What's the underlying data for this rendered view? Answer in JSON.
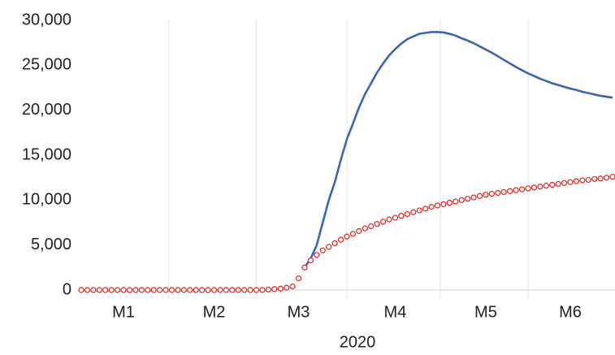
{
  "chart_data": {
    "type": "line",
    "x_label": "2020",
    "categories": [
      null,
      null,
      null,
      null,
      null,
      null,
      null,
      "M1",
      null,
      null,
      null,
      null,
      null,
      null,
      null,
      null,
      null,
      null,
      null,
      null,
      null,
      null,
      "M2",
      null,
      null,
      null,
      null,
      null,
      null,
      null,
      null,
      null,
      null,
      null,
      null,
      null,
      "M3",
      null,
      null,
      null,
      null,
      null,
      null,
      null,
      null,
      null,
      null,
      null,
      null,
      null,
      null,
      null,
      "M4",
      null,
      null,
      null,
      null,
      null,
      null,
      null,
      null,
      null,
      null,
      null,
      null,
      null,
      null,
      "M5",
      null,
      null,
      null,
      null,
      null,
      null,
      null,
      null,
      null,
      null,
      null,
      null,
      null,
      "M6",
      null,
      null,
      null,
      null,
      null,
      null,
      null
    ],
    "series": [
      {
        "color": "#3b66ad",
        "style": "line",
        "values": [
          null,
          null,
          null,
          null,
          null,
          null,
          null,
          null,
          null,
          null,
          null,
          null,
          null,
          null,
          null,
          null,
          null,
          null,
          null,
          null,
          null,
          null,
          null,
          null,
          null,
          null,
          null,
          null,
          null,
          null,
          null,
          null,
          null,
          null,
          null,
          null,
          null,
          2500,
          3500,
          5000,
          7500,
          10000,
          12000,
          14500,
          16800,
          18500,
          20300,
          21800,
          23000,
          24200,
          25200,
          26100,
          26800,
          27400,
          27900,
          28200,
          28500,
          28600,
          28700,
          28700,
          28650,
          28500,
          28300,
          28000,
          27750,
          27450,
          27100,
          26750,
          26400,
          26000,
          25600,
          25200,
          24800,
          24450,
          24100,
          23800,
          23500,
          23250,
          23000,
          22800,
          22600,
          22400,
          22250,
          22050,
          21900,
          21750,
          21600,
          21500,
          21400
        ]
      },
      {
        "color": "#e0201b",
        "style": "markers",
        "values": [
          0,
          0,
          0,
          0,
          0,
          0,
          0,
          0,
          0,
          0,
          0,
          0,
          0,
          0,
          0,
          0,
          0,
          0,
          0,
          0,
          0,
          0,
          0,
          0,
          0,
          0,
          0,
          0,
          0,
          0,
          0,
          50,
          100,
          150,
          250,
          400,
          1300,
          2500,
          3300,
          3900,
          4400,
          4800,
          5200,
          5600,
          5950,
          6250,
          6550,
          6850,
          7100,
          7350,
          7600,
          7850,
          8050,
          8250,
          8450,
          8650,
          8850,
          9050,
          9250,
          9400,
          9550,
          9700,
          9850,
          10000,
          10150,
          10300,
          10450,
          10600,
          10700,
          10800,
          10900,
          11000,
          11100,
          11200,
          11300,
          11400,
          11500,
          11600,
          11700,
          11800,
          11900,
          12000,
          12100,
          12200,
          12250,
          12350,
          12400,
          12500,
          12600
        ]
      }
    ],
    "ylim": [
      0,
      30000
    ],
    "yticks": [
      0,
      {
        "value": 5000,
        "label": "5,000"
      },
      {
        "value": 10000,
        "label": "10,000"
      },
      {
        "value": 15000,
        "label": "15,000"
      },
      {
        "value": 20000,
        "label": "20,000"
      },
      {
        "value": 25000,
        "label": "25,000"
      },
      {
        "value": 30000,
        "label": "30,000"
      }
    ],
    "grid": false,
    "category_grid": true
  }
}
